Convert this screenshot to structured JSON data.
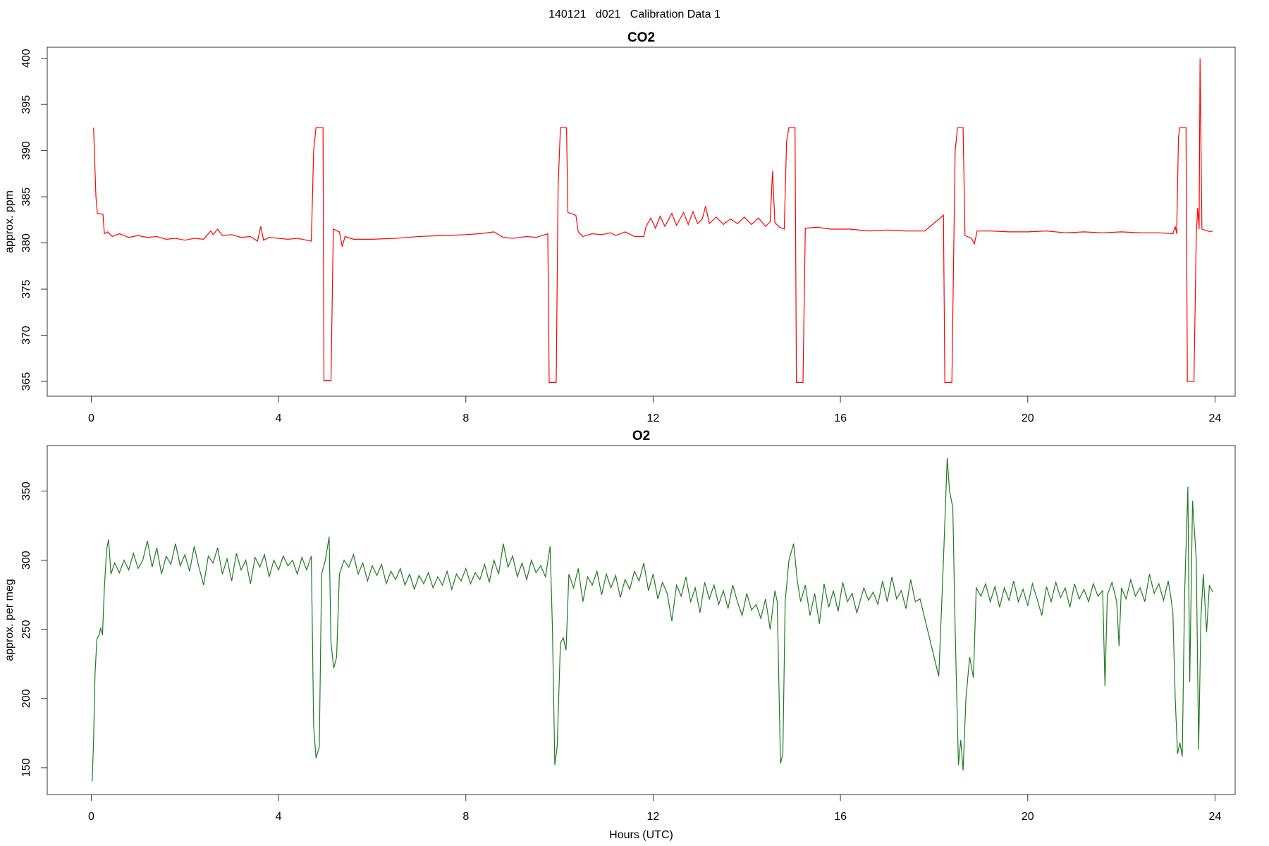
{
  "page_title": "140121   d021   Calibration Data 1",
  "chart_data": [
    {
      "type": "line",
      "title": "CO2",
      "ylabel": "approx. ppm",
      "color": "#ff0000",
      "xlim": [
        -0.94,
        24.43
      ],
      "xticks": [
        0,
        4,
        8,
        12,
        16,
        20,
        24
      ],
      "ylim": [
        363.4,
        401.2
      ],
      "yticks": [
        365,
        370,
        375,
        380,
        385,
        390,
        395,
        400
      ],
      "x": [
        0.05,
        0.1,
        0.13,
        0.25,
        0.28,
        0.35,
        0.45,
        0.6,
        0.8,
        1.0,
        1.2,
        1.4,
        1.6,
        1.8,
        2.0,
        2.2,
        2.4,
        2.55,
        2.6,
        2.7,
        2.8,
        3.0,
        3.2,
        3.4,
        3.55,
        3.62,
        3.68,
        3.8,
        4.0,
        4.2,
        4.4,
        4.6,
        4.7,
        4.75,
        4.8,
        4.95,
        4.97,
        5.12,
        5.17,
        5.3,
        5.36,
        5.42,
        5.6,
        6.0,
        6.5,
        7.0,
        7.5,
        8.0,
        8.3,
        8.6,
        8.8,
        9.0,
        9.3,
        9.5,
        9.75,
        9.78,
        9.93,
        9.97,
        10.02,
        10.15,
        10.18,
        10.35,
        10.4,
        10.5,
        10.7,
        10.9,
        11.1,
        11.2,
        11.4,
        11.6,
        11.8,
        11.85,
        11.95,
        12.05,
        12.15,
        12.25,
        12.4,
        12.5,
        12.65,
        12.75,
        12.85,
        12.95,
        13.05,
        13.12,
        13.2,
        13.35,
        13.5,
        13.65,
        13.8,
        13.95,
        14.1,
        14.25,
        14.4,
        14.5,
        14.55,
        14.6,
        14.7,
        14.8,
        14.85,
        14.9,
        15.03,
        15.06,
        15.2,
        15.25,
        15.5,
        15.8,
        16.2,
        16.6,
        17.0,
        17.4,
        17.8,
        18.2,
        18.23,
        18.38,
        18.45,
        18.5,
        18.62,
        18.66,
        18.8,
        18.86,
        18.92,
        19.2,
        19.6,
        20.0,
        20.4,
        20.8,
        21.2,
        21.6,
        22.0,
        22.4,
        22.8,
        23.1,
        23.15,
        23.18,
        23.22,
        23.25,
        23.38,
        23.41,
        23.55,
        23.6,
        23.63,
        23.66,
        23.68,
        23.72,
        23.9,
        23.95
      ],
      "values": [
        392.5,
        385,
        383.2,
        383.1,
        381.0,
        381.2,
        380.7,
        381.0,
        380.6,
        380.8,
        380.6,
        380.7,
        380.4,
        380.5,
        380.3,
        380.5,
        380.4,
        381.3,
        380.9,
        381.5,
        380.8,
        380.9,
        380.6,
        380.7,
        380.2,
        381.8,
        380.3,
        380.6,
        380.5,
        380.4,
        380.5,
        380.3,
        380.2,
        390,
        392.5,
        392.5,
        365.1,
        365.1,
        381.5,
        381.2,
        379.6,
        380.7,
        380.4,
        380.4,
        380.5,
        380.7,
        380.8,
        380.9,
        381.0,
        381.2,
        380.6,
        380.5,
        380.7,
        380.6,
        381.0,
        364.9,
        364.9,
        386,
        392.5,
        392.5,
        383.3,
        383.0,
        381.2,
        380.7,
        381.0,
        380.9,
        381.1,
        380.8,
        381.2,
        380.7,
        380.7,
        381.8,
        382.7,
        381.6,
        382.9,
        381.8,
        383.2,
        381.9,
        383.3,
        382.0,
        383.4,
        382.1,
        382.6,
        384.0,
        382.1,
        382.8,
        382.0,
        382.6,
        382.1,
        382.8,
        382.0,
        382.7,
        381.8,
        382.3,
        387.8,
        382.2,
        381.7,
        381.5,
        391,
        392.5,
        392.5,
        364.9,
        364.9,
        381.6,
        381.7,
        381.5,
        381.5,
        381.3,
        381.4,
        381.3,
        381.3,
        383.0,
        364.9,
        364.9,
        390,
        392.5,
        392.5,
        380.8,
        380.5,
        379.9,
        381.3,
        381.3,
        381.2,
        381.2,
        381.3,
        381.1,
        381.2,
        381.1,
        381.2,
        381.1,
        381.1,
        381.0,
        381.8,
        381.0,
        391.5,
        392.5,
        392.5,
        365.0,
        365.0,
        381.0,
        383.8,
        381.5,
        400.0,
        381.5,
        381.2,
        381.3
      ]
    },
    {
      "type": "line",
      "title": "O2",
      "ylabel": "approx. per meg",
      "xlabel": "Hours (UTC)",
      "color": "#1f7a1f",
      "xlim": [
        -0.94,
        24.43
      ],
      "xticks": [
        0,
        4,
        8,
        12,
        16,
        20,
        24
      ],
      "ylim": [
        130.6,
        382.9
      ],
      "yticks": [
        150,
        200,
        250,
        300,
        350
      ],
      "x": [
        0.02,
        0.05,
        0.08,
        0.12,
        0.17,
        0.2,
        0.24,
        0.28,
        0.33,
        0.37,
        0.42,
        0.5,
        0.6,
        0.7,
        0.8,
        0.9,
        1.0,
        1.1,
        1.2,
        1.3,
        1.4,
        1.5,
        1.6,
        1.7,
        1.8,
        1.9,
        2.0,
        2.1,
        2.2,
        2.3,
        2.4,
        2.5,
        2.6,
        2.7,
        2.8,
        2.9,
        3.0,
        3.1,
        3.2,
        3.3,
        3.4,
        3.5,
        3.6,
        3.7,
        3.8,
        3.9,
        4.0,
        4.1,
        4.2,
        4.3,
        4.4,
        4.5,
        4.6,
        4.7,
        4.75,
        4.8,
        4.87,
        4.92,
        5.0,
        5.08,
        5.12,
        5.18,
        5.24,
        5.3,
        5.4,
        5.5,
        5.6,
        5.7,
        5.8,
        5.9,
        6.0,
        6.1,
        6.2,
        6.3,
        6.4,
        6.5,
        6.6,
        6.7,
        6.8,
        6.9,
        7.0,
        7.1,
        7.2,
        7.3,
        7.4,
        7.5,
        7.6,
        7.7,
        7.8,
        7.9,
        8.0,
        8.1,
        8.2,
        8.3,
        8.4,
        8.5,
        8.6,
        8.7,
        8.8,
        8.9,
        9.0,
        9.1,
        9.2,
        9.3,
        9.4,
        9.5,
        9.6,
        9.7,
        9.8,
        9.85,
        9.9,
        9.95,
        10.02,
        10.08,
        10.14,
        10.2,
        10.3,
        10.4,
        10.5,
        10.6,
        10.7,
        10.8,
        10.9,
        11.0,
        11.1,
        11.2,
        11.3,
        11.4,
        11.5,
        11.6,
        11.7,
        11.8,
        11.9,
        12.0,
        12.1,
        12.2,
        12.3,
        12.4,
        12.5,
        12.6,
        12.7,
        12.8,
        12.9,
        13.0,
        13.1,
        13.2,
        13.3,
        13.4,
        13.5,
        13.6,
        13.7,
        13.8,
        13.9,
        14.0,
        14.1,
        14.2,
        14.3,
        14.4,
        14.5,
        14.6,
        14.65,
        14.72,
        14.77,
        14.82,
        14.9,
        15.0,
        15.08,
        15.15,
        15.25,
        15.35,
        15.45,
        15.55,
        15.65,
        15.75,
        15.85,
        15.95,
        16.05,
        16.15,
        16.25,
        16.35,
        16.5,
        16.6,
        16.7,
        16.8,
        16.9,
        17.0,
        17.1,
        17.2,
        17.3,
        17.4,
        17.5,
        17.6,
        17.7,
        18.1,
        18.2,
        18.28,
        18.33,
        18.4,
        18.45,
        18.52,
        18.57,
        18.62,
        18.68,
        18.76,
        18.84,
        18.9,
        19.0,
        19.1,
        19.2,
        19.3,
        19.4,
        19.5,
        19.6,
        19.7,
        19.8,
        19.9,
        20.0,
        20.1,
        20.2,
        20.3,
        20.4,
        20.5,
        20.6,
        20.7,
        20.8,
        20.9,
        21.0,
        21.1,
        21.2,
        21.3,
        21.4,
        21.5,
        21.6,
        21.65,
        21.7,
        21.8,
        21.9,
        21.95,
        22.0,
        22.1,
        22.2,
        22.3,
        22.4,
        22.5,
        22.6,
        22.7,
        22.8,
        22.9,
        23.0,
        23.05,
        23.1,
        23.15,
        23.2,
        23.25,
        23.3,
        23.35,
        23.42,
        23.46,
        23.52,
        23.6,
        23.65,
        23.7,
        23.75,
        23.82,
        23.88,
        23.95
      ],
      "values": [
        140,
        170,
        217,
        243,
        246,
        251,
        246,
        280,
        308,
        315,
        290,
        298,
        291,
        300,
        293,
        305,
        294,
        300,
        314,
        295,
        309,
        290,
        303,
        297,
        312,
        296,
        304,
        292,
        310,
        295,
        282,
        303,
        298,
        309,
        290,
        301,
        285,
        305,
        293,
        300,
        283,
        302,
        295,
        304,
        288,
        300,
        293,
        303,
        296,
        300,
        290,
        302,
        293,
        303,
        180,
        157,
        165,
        290,
        300,
        317,
        240,
        222,
        230,
        290,
        300,
        295,
        304,
        290,
        298,
        285,
        296,
        289,
        297,
        283,
        292,
        286,
        294,
        282,
        290,
        279,
        289,
        283,
        291,
        280,
        288,
        282,
        292,
        279,
        290,
        285,
        294,
        283,
        291,
        286,
        297,
        284,
        300,
        290,
        312,
        295,
        303,
        288,
        298,
        286,
        300,
        291,
        296,
        288,
        310,
        250,
        152,
        165,
        240,
        244,
        235,
        290,
        280,
        294,
        270,
        288,
        282,
        292,
        275,
        290,
        280,
        289,
        273,
        286,
        279,
        292,
        285,
        298,
        278,
        290,
        272,
        284,
        276,
        256,
        282,
        274,
        288,
        270,
        280,
        262,
        284,
        272,
        282,
        268,
        278,
        265,
        282,
        270,
        260,
        276,
        264,
        268,
        258,
        272,
        250,
        278,
        270,
        153,
        160,
        270,
        300,
        312,
        285,
        270,
        282,
        260,
        276,
        254,
        283,
        266,
        278,
        263,
        284,
        270,
        276,
        262,
        280,
        271,
        277,
        268,
        285,
        270,
        288,
        272,
        278,
        265,
        286,
        270,
        272,
        216,
        300,
        374,
        350,
        338,
        250,
        152,
        170,
        148,
        200,
        230,
        215,
        280,
        274,
        283,
        270,
        281,
        266,
        280,
        271,
        285,
        270,
        279,
        267,
        283,
        272,
        260,
        281,
        270,
        284,
        273,
        280,
        266,
        283,
        272,
        279,
        270,
        283,
        274,
        278,
        209,
        275,
        284,
        270,
        238,
        280,
        272,
        286,
        274,
        280,
        270,
        290,
        276,
        283,
        271,
        285,
        275,
        262,
        200,
        160,
        168,
        158,
        275,
        353,
        212,
        343,
        300,
        163,
        260,
        290,
        248,
        282,
        277
      ]
    }
  ]
}
